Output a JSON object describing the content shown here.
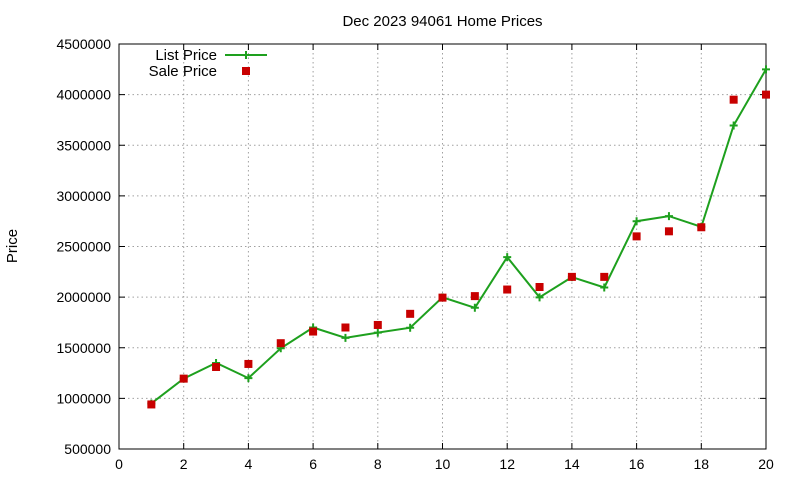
{
  "chart_data": {
    "type": "line",
    "title": "Dec 2023 94061 Home Prices",
    "xlabel": "",
    "ylabel": "Price",
    "xlim": [
      0,
      20
    ],
    "ylim": [
      500000,
      4500000
    ],
    "x_ticks": [
      0,
      2,
      4,
      6,
      8,
      10,
      12,
      14,
      16,
      18,
      20
    ],
    "y_ticks": [
      500000,
      1000000,
      1500000,
      2000000,
      2500000,
      3000000,
      3500000,
      4000000,
      4500000
    ],
    "grid": true,
    "legend_position": "top-left",
    "series": [
      {
        "name": "List Price",
        "style": "line-with-plus-markers",
        "color": "#1ea01e",
        "x": [
          1,
          2,
          3,
          4,
          5,
          6,
          7,
          8,
          9,
          10,
          11,
          12,
          13,
          14,
          15,
          16,
          17,
          18,
          19,
          20
        ],
        "y": [
          950000,
          1195000,
          1350000,
          1200000,
          1495000,
          1700000,
          1598000,
          1650000,
          1698000,
          1998000,
          1895000,
          2395000,
          1998000,
          2198000,
          2095000,
          2750000,
          2800000,
          2695000,
          3695000,
          4250000
        ]
      },
      {
        "name": "Sale Price",
        "style": "square-markers",
        "color": "#c80000",
        "x": [
          1,
          2,
          3,
          4,
          5,
          6,
          7,
          8,
          9,
          10,
          11,
          12,
          13,
          14,
          15,
          16,
          17,
          18,
          19,
          20
        ],
        "y": [
          940000,
          1195000,
          1310000,
          1340000,
          1545000,
          1660000,
          1700000,
          1725000,
          1835000,
          1995000,
          2010000,
          2075000,
          2100000,
          2200000,
          2200000,
          2600000,
          2650000,
          2690000,
          3950000,
          4000000
        ]
      }
    ]
  }
}
